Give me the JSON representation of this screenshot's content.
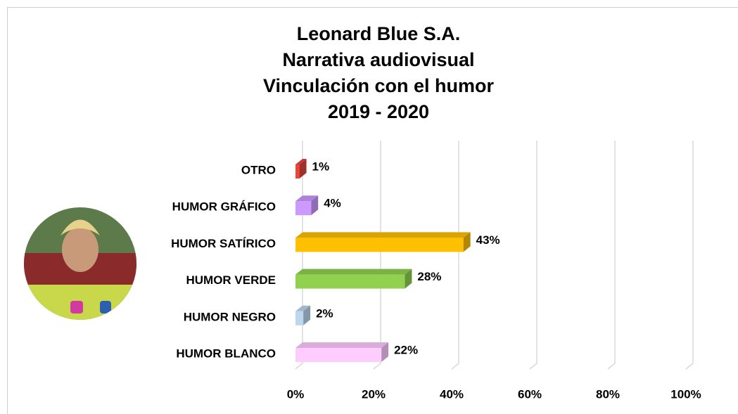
{
  "chart_data": {
    "type": "bar3d-horizontal",
    "title": [
      "Leonard Blue S.A.",
      "Narrativa audiovisual",
      "Vinculación con el humor",
      "2019 - 2020"
    ],
    "categories": [
      "OTRO",
      "HUMOR GRÁFICO",
      "HUMOR SATÍRICO",
      "HUMOR VERDE",
      "HUMOR NEGRO",
      "HUMOR BLANCO"
    ],
    "values": [
      1,
      4,
      43,
      28,
      2,
      22
    ],
    "value_labels": [
      "1%",
      "4%",
      "43%",
      "28%",
      "2%",
      "22%"
    ],
    "colors": [
      "#e8453c",
      "#cc99ff",
      "#ffc000",
      "#92d050",
      "#bdd7ee",
      "#ffccff"
    ],
    "xlim": [
      0,
      100
    ],
    "xticks": [
      {
        "value": 0,
        "label": "0%"
      },
      {
        "value": 20,
        "label": "20%"
      },
      {
        "value": 40,
        "label": "40%"
      },
      {
        "value": 60,
        "label": "60%"
      },
      {
        "value": 80,
        "label": "80%"
      },
      {
        "value": 100,
        "label": "100%"
      }
    ],
    "grid": true
  }
}
